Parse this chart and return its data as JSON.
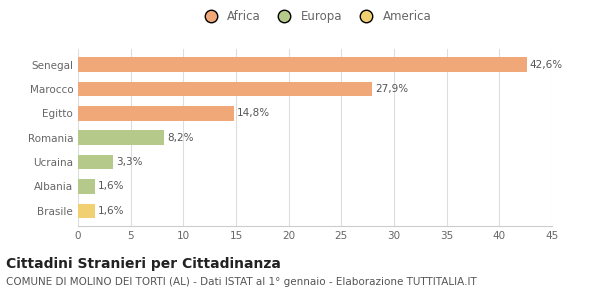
{
  "categories": [
    "Senegal",
    "Marocco",
    "Egitto",
    "Romania",
    "Ucraina",
    "Albania",
    "Brasile"
  ],
  "values": [
    42.6,
    27.9,
    14.8,
    8.2,
    3.3,
    1.6,
    1.6
  ],
  "labels": [
    "42,6%",
    "27,9%",
    "14,8%",
    "8,2%",
    "3,3%",
    "1,6%",
    "1,6%"
  ],
  "colors": [
    "#F0A878",
    "#F0A878",
    "#F0A878",
    "#B5C98A",
    "#B5C98A",
    "#B5C98A",
    "#F0D070"
  ],
  "legend": [
    {
      "label": "Africa",
      "color": "#F0A878"
    },
    {
      "label": "Europa",
      "color": "#B5C98A"
    },
    {
      "label": "America",
      "color": "#F0D070"
    }
  ],
  "xlim": [
    0,
    45
  ],
  "xticks": [
    0,
    5,
    10,
    15,
    20,
    25,
    30,
    35,
    40,
    45
  ],
  "title": "Cittadini Stranieri per Cittadinanza",
  "subtitle": "COMUNE DI MOLINO DEI TORTI (AL) - Dati ISTAT al 1° gennaio - Elaborazione TUTTITALIA.IT",
  "bg_color": "#ffffff",
  "bar_height": 0.6,
  "title_fontsize": 10,
  "subtitle_fontsize": 7.5,
  "label_fontsize": 7.5,
  "tick_fontsize": 7.5,
  "legend_fontsize": 8.5
}
